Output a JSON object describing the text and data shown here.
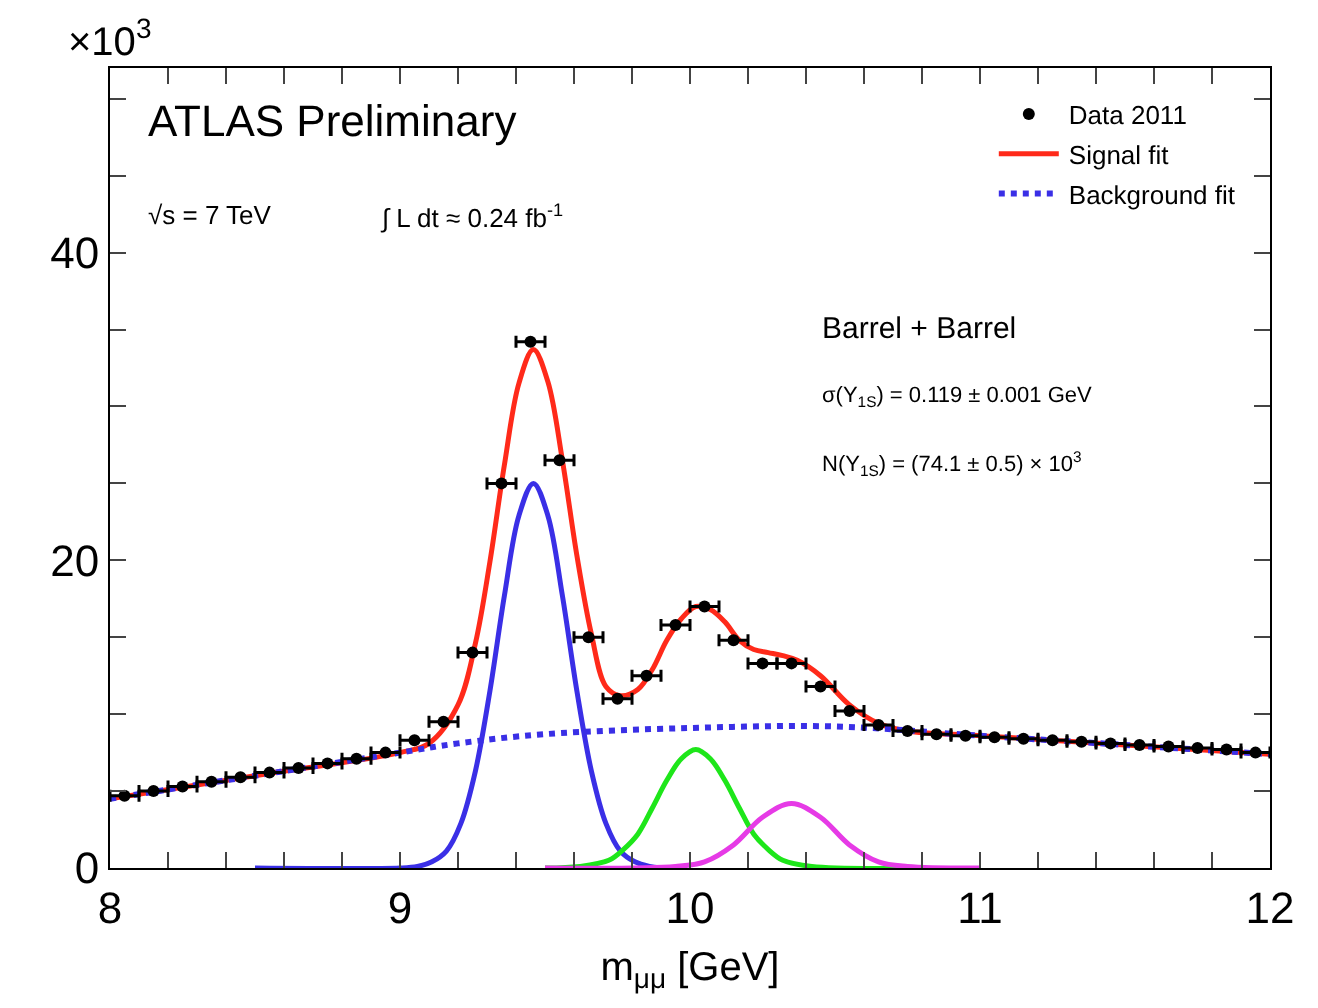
{
  "chart_data": {
    "type": "line",
    "xlabel": "m$_{μμ}$ [GeV]",
    "annotations": [
      "×10$^{3}$",
      "ATLAS Preliminary",
      "√s = 7 TeV",
      "∫ L dt ≈ 0.24 fb$^{-1}$",
      "Barrel + Barrel",
      "σ(Υ$_{1S}$) = 0.119 ± 0.001 GeV",
      "N(Υ$_{1S}$) = (74.1 ± 0.5) × 10$^{3}$"
    ],
    "xlim": [
      8,
      12
    ],
    "xticks": [
      8,
      {
        "value": 8.2,
        "label": null
      },
      {
        "value": 8.4,
        "label": null
      },
      {
        "value": 8.6,
        "label": null
      },
      {
        "value": 8.8,
        "label": null
      },
      9,
      {
        "value": 9.2,
        "label": null
      },
      {
        "value": 9.4,
        "label": null
      },
      {
        "value": 9.6,
        "label": null
      },
      {
        "value": 9.8,
        "label": null
      },
      10,
      {
        "value": 10.2,
        "label": null
      },
      {
        "value": 10.4,
        "label": null
      },
      {
        "value": 10.6,
        "label": null
      },
      {
        "value": 10.8,
        "label": null
      },
      11,
      {
        "value": 11.2,
        "label": null
      },
      {
        "value": 11.4,
        "label": null
      },
      {
        "value": 11.6,
        "label": null
      },
      {
        "value": 11.8,
        "label": null
      },
      12
    ],
    "ylim": [
      0,
      52
    ],
    "yticks": [
      0,
      {
        "value": 5,
        "label": null
      },
      {
        "value": 10,
        "label": null
      },
      {
        "value": 15,
        "label": null
      },
      20,
      {
        "value": 25,
        "label": null
      },
      {
        "value": 30,
        "label": null
      },
      {
        "value": 35,
        "label": null
      },
      40,
      {
        "value": 45,
        "label": null
      },
      {
        "value": 50,
        "label": null
      }
    ],
    "legend": "top right",
    "series": [
      {
        "name": "Signal fit",
        "line_style": "solid",
        "color": "#ff2a1a",
        "x": [
          8,
          8.5,
          9.0,
          9.1,
          9.2,
          9.26,
          9.31,
          9.36,
          9.41,
          9.46,
          9.51,
          9.56,
          9.61,
          9.66,
          9.71,
          9.76,
          9.82,
          9.87,
          9.92,
          9.97,
          10.02,
          10.07,
          10.12,
          10.17,
          10.22,
          10.27,
          10.32,
          10.37,
          10.45,
          10.55,
          10.65,
          10.75,
          11,
          11.5,
          12
        ],
        "values": [
          4.5,
          6.0,
          7.5,
          8.1,
          10.6,
          14.6,
          19.9,
          26.2,
          31.5,
          33.7,
          31.6,
          26.5,
          20.3,
          15.2,
          11.8,
          11.2,
          11.6,
          12.9,
          14.8,
          16.2,
          17.0,
          16.8,
          16.0,
          14.8,
          14.2,
          14.0,
          13.8,
          13.5,
          12.5,
          10.6,
          9.4,
          8.9,
          8.6,
          8.0,
          7.4
        ]
      },
      {
        "name": "Background fit",
        "line_style": "dotted",
        "color": "#3a2fe6",
        "x": [
          8,
          8.5,
          9,
          9.2,
          9.5,
          10,
          10.5,
          11,
          11.5,
          12
        ],
        "values": [
          4.5,
          6.0,
          7.5,
          8.1,
          8.7,
          9.1,
          9.2,
          8.6,
          8.0,
          7.4
        ]
      },
      {
        "line_style": "solid",
        "color": "#3a2fe6",
        "x": [
          8.5,
          9.0,
          9.06,
          9.11,
          9.16,
          9.21,
          9.26,
          9.31,
          9.36,
          9.41,
          9.46,
          9.51,
          9.56,
          9.61,
          9.66,
          9.71,
          9.76,
          9.81,
          9.86,
          9.9
        ],
        "values": [
          0,
          0,
          0.1,
          0.4,
          1.1,
          2.9,
          6.3,
          11.5,
          17.7,
          22.9,
          25,
          22.9,
          17.7,
          11.5,
          6.3,
          2.9,
          1.1,
          0.4,
          0.1,
          0
        ]
      },
      {
        "line_style": "solid",
        "color": "#1ee61a",
        "x": [
          9.5,
          9.62,
          9.72,
          9.77,
          9.82,
          9.87,
          9.92,
          9.97,
          10.02,
          10.07,
          10.12,
          10.17,
          10.22,
          10.27,
          10.32,
          10.42,
          10.8
        ],
        "values": [
          0,
          0.1,
          0.5,
          1.2,
          2.2,
          3.9,
          5.7,
          7.1,
          7.7,
          7.1,
          5.7,
          3.9,
          2.2,
          1.2,
          0.5,
          0.1,
          0
        ]
      },
      {
        "line_style": "solid",
        "color": "#e63ae6",
        "x": [
          9.5,
          9.95,
          10.05,
          10.15,
          10.25,
          10.35,
          10.45,
          10.55,
          10.65,
          10.75,
          11.0
        ],
        "values": [
          0,
          0.1,
          0.4,
          1.5,
          3.3,
          4.2,
          3.3,
          1.5,
          0.4,
          0.1,
          0
        ]
      },
      {
        "name": "Data 2011",
        "type": "scatter",
        "marker": "circle",
        "color": "#000000",
        "x": [
          8.05,
          8.15,
          8.25,
          8.35,
          8.45,
          8.55,
          8.65,
          8.75,
          8.85,
          8.95,
          9.05,
          9.15,
          9.25,
          9.35,
          9.45,
          9.55,
          9.65,
          9.75,
          9.85,
          9.95,
          10.05,
          10.15,
          10.25,
          10.35,
          10.45,
          10.55,
          10.65,
          10.75,
          10.85,
          10.95,
          11.05,
          11.15,
          11.25,
          11.35,
          11.45,
          11.55,
          11.65,
          11.75,
          11.85,
          11.95
        ],
        "values": [
          4.7,
          5.0,
          5.3,
          5.6,
          5.9,
          6.2,
          6.5,
          6.8,
          7.1,
          7.5,
          8.3,
          9.5,
          14.0,
          25.0,
          34.2,
          26.5,
          15.0,
          11.0,
          12.5,
          15.8,
          17.0,
          14.8,
          13.3,
          13.3,
          11.8,
          10.2,
          9.3,
          8.9,
          8.7,
          8.6,
          8.5,
          8.4,
          8.3,
          8.2,
          8.1,
          8.0,
          7.9,
          7.8,
          7.7,
          7.5
        ],
        "xerrors": [
          0.05,
          0.05,
          0.05,
          0.05,
          0.05,
          0.05,
          0.05,
          0.05,
          0.05,
          0.05,
          0.05,
          0.05,
          0.05,
          0.05,
          0.05,
          0.05,
          0.05,
          0.05,
          0.05,
          0.05,
          0.05,
          0.05,
          0.05,
          0.05,
          0.05,
          0.05,
          0.05,
          0.05,
          0.05,
          0.05,
          0.05,
          0.05,
          0.05,
          0.05,
          0.05,
          0.05,
          0.05,
          0.05,
          0.05,
          0.05
        ]
      }
    ]
  }
}
